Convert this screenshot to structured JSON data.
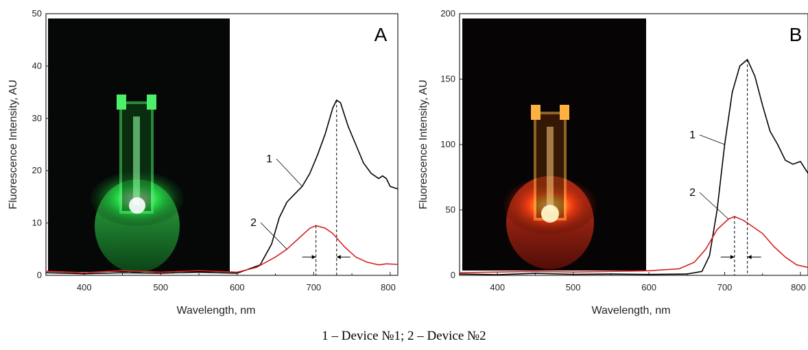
{
  "caption": "1 – Device №1; 2 – Device №2",
  "colors": {
    "curve1": "#000000",
    "curve2": "#d42020",
    "photoA": "#22dd44",
    "photoB": "#ff5a14"
  },
  "chart_data": [
    {
      "type": "line",
      "panel": "A",
      "xlabel": "Wavelength, nm",
      "ylabel": "Fluorescence Intensity, AU",
      "xlim": [
        350,
        810
      ],
      "ylim": [
        0,
        50
      ],
      "xticks": [
        400,
        500,
        600,
        700,
        800
      ],
      "yticks": [
        0,
        10,
        20,
        30,
        40,
        50
      ],
      "annotations": {
        "peak1_x": 730,
        "peak2_x": 703,
        "label1": "1",
        "label2": "2"
      },
      "photo_glow": "green",
      "series": [
        {
          "label": "1",
          "x": [
            350,
            400,
            450,
            500,
            550,
            600,
            630,
            645,
            655,
            665,
            675,
            685,
            695,
            705,
            715,
            725,
            730,
            735,
            745,
            755,
            765,
            775,
            785,
            790,
            795,
            800,
            810
          ],
          "y": [
            0.5,
            0.3,
            0.5,
            0.4,
            0.6,
            0.4,
            2,
            6,
            11,
            14,
            15.5,
            17,
            19.5,
            23,
            27,
            32,
            33.5,
            33,
            28.5,
            25,
            21.5,
            19.5,
            18.5,
            19,
            18.5,
            17,
            16.5
          ]
        },
        {
          "label": "2",
          "x": [
            350,
            400,
            450,
            500,
            550,
            600,
            625,
            650,
            665,
            680,
            695,
            703,
            715,
            725,
            740,
            755,
            770,
            785,
            795,
            810
          ],
          "y": [
            0.8,
            0.5,
            0.9,
            0.6,
            0.9,
            0.6,
            1.5,
            3.5,
            5,
            7,
            9,
            9.5,
            9,
            8,
            5.5,
            3.5,
            2.5,
            2,
            2.2,
            2.1
          ]
        }
      ]
    },
    {
      "type": "line",
      "panel": "B",
      "xlabel": "Wavelength, nm",
      "ylabel": "Fluorescence Intensity, AU",
      "xlim": [
        350,
        810
      ],
      "ylim": [
        0,
        200
      ],
      "xticks": [
        400,
        500,
        600,
        700,
        800
      ],
      "yticks": [
        0,
        50,
        100,
        150,
        200
      ],
      "annotations": {
        "peak1_x": 730,
        "peak2_x": 713,
        "label1": "1",
        "label2": "2"
      },
      "photo_glow": "red",
      "series": [
        {
          "label": "1",
          "x": [
            350,
            400,
            450,
            500,
            550,
            600,
            650,
            670,
            680,
            690,
            700,
            710,
            720,
            730,
            740,
            750,
            760,
            770,
            780,
            790,
            800,
            810
          ],
          "y": [
            1,
            0.5,
            1.5,
            0.8,
            1,
            0.7,
            1,
            3,
            15,
            50,
            100,
            140,
            160,
            165,
            152,
            130,
            110,
            100,
            88,
            85,
            87,
            78
          ]
        },
        {
          "label": "2",
          "x": [
            350,
            400,
            450,
            500,
            550,
            600,
            640,
            660,
            675,
            690,
            705,
            713,
            725,
            735,
            750,
            765,
            780,
            795,
            810
          ],
          "y": [
            2,
            2.5,
            3,
            2.5,
            3,
            3.5,
            5,
            10,
            20,
            35,
            43,
            45,
            42,
            38,
            32,
            22,
            14,
            8,
            6
          ]
        }
      ]
    }
  ]
}
